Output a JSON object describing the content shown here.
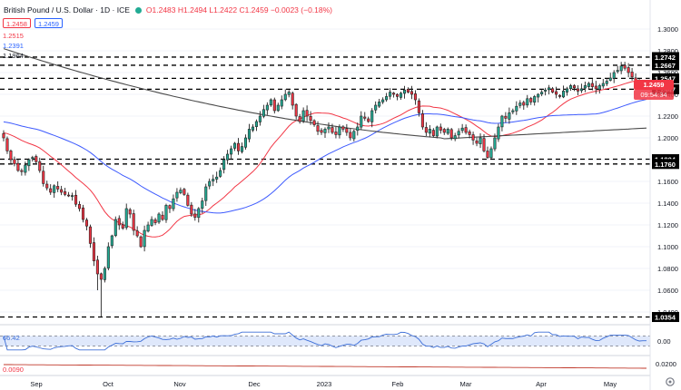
{
  "header": {
    "title": "British Pound / U.S. Dollar · 1D · ICE",
    "ohlc": "O1.2483  H1.2494  L1.2422  C1.2459  −0.0023 (−0.18%)",
    "bid": "1.2458",
    "ask": "1.2459"
  },
  "ma_labels": [
    {
      "text": "1.2515",
      "color": "#f23645"
    },
    {
      "text": "1.2391",
      "color": "#2962ff"
    },
    {
      "text": "1.1964",
      "color": "#131722"
    }
  ],
  "price_tag": {
    "value": "1.2459",
    "timer": "09:54:34",
    "color": "#f23645"
  },
  "indicator": {
    "rsi_label": "66.42",
    "lower_label": "0.0090"
  },
  "colors": {
    "up": "#22ab94",
    "down": "#f23645",
    "ma20": "#f23645",
    "ma50": "#3d5afe",
    "ma200": "#4a4a4a",
    "rsi": "#3d6fd8"
  },
  "chart_data": {
    "type": "candlestick",
    "title": "British Pound / U.S. Dollar · 1D · ICE",
    "ylim": [
      1.03,
      1.31
    ],
    "y_ticks": [
      "1.3000",
      "1.2800",
      "1.2600",
      "1.2400",
      "1.2200",
      "1.2000",
      "1.1800",
      "1.1600",
      "1.1400",
      "1.1200",
      "1.1000",
      "1.0800",
      "1.0600",
      "1.0400"
    ],
    "x_ticks": [
      "Sep",
      "Oct",
      "Nov",
      "Dec",
      "2023",
      "Feb",
      "Mar",
      "Apr",
      "May"
    ],
    "levels": [
      "1.2742",
      "1.2667",
      "1.2547",
      "1.2447",
      "1.1804",
      "1.1760",
      "1.0354"
    ],
    "closes": [
      1.2,
      1.188,
      1.18,
      1.176,
      1.17,
      1.169,
      1.175,
      1.18,
      1.182,
      1.178,
      1.17,
      1.158,
      1.154,
      1.15,
      1.156,
      1.153,
      1.15,
      1.148,
      1.147,
      1.147,
      1.139,
      1.135,
      1.125,
      1.119,
      1.103,
      1.087,
      1.075,
      1.07,
      1.08,
      1.1,
      1.11,
      1.125,
      1.12,
      1.117,
      1.135,
      1.13,
      1.115,
      1.11,
      1.1,
      1.115,
      1.12,
      1.125,
      1.122,
      1.13,
      1.125,
      1.138,
      1.135,
      1.144,
      1.15,
      1.152,
      1.148,
      1.138,
      1.13,
      1.127,
      1.135,
      1.142,
      1.155,
      1.16,
      1.162,
      1.164,
      1.17,
      1.18,
      1.185,
      1.19,
      1.195,
      1.188,
      1.192,
      1.2,
      1.208,
      1.21,
      1.215,
      1.22,
      1.226,
      1.23,
      1.235,
      1.225,
      1.23,
      1.235,
      1.24,
      1.242,
      1.23,
      1.22,
      1.215,
      1.225,
      1.22,
      1.216,
      1.212,
      1.206,
      1.205,
      1.208,
      1.21,
      1.205,
      1.203,
      1.21,
      1.208,
      1.205,
      1.2,
      1.206,
      1.21,
      1.22,
      1.218,
      1.215,
      1.225,
      1.23,
      1.233,
      1.235,
      1.238,
      1.242,
      1.24,
      1.238,
      1.241,
      1.244,
      1.242,
      1.24,
      1.235,
      1.223,
      1.21,
      1.205,
      1.208,
      1.202,
      1.21,
      1.207,
      1.205,
      1.208,
      1.2,
      1.202,
      1.206,
      1.209,
      1.205,
      1.203,
      1.198,
      1.195,
      1.2,
      1.188,
      1.182,
      1.19,
      1.2,
      1.21,
      1.22,
      1.218,
      1.223,
      1.225,
      1.229,
      1.232,
      1.23,
      1.236,
      1.233,
      1.238,
      1.24,
      1.242,
      1.244,
      1.246,
      1.242,
      1.24,
      1.238,
      1.243,
      1.245,
      1.248,
      1.246,
      1.243,
      1.245,
      1.248,
      1.25,
      1.247,
      1.245,
      1.248,
      1.25,
      1.252,
      1.255,
      1.26,
      1.262,
      1.266,
      1.264,
      1.26,
      1.256,
      1.252,
      1.25,
      1.248,
      1.246
    ]
  }
}
